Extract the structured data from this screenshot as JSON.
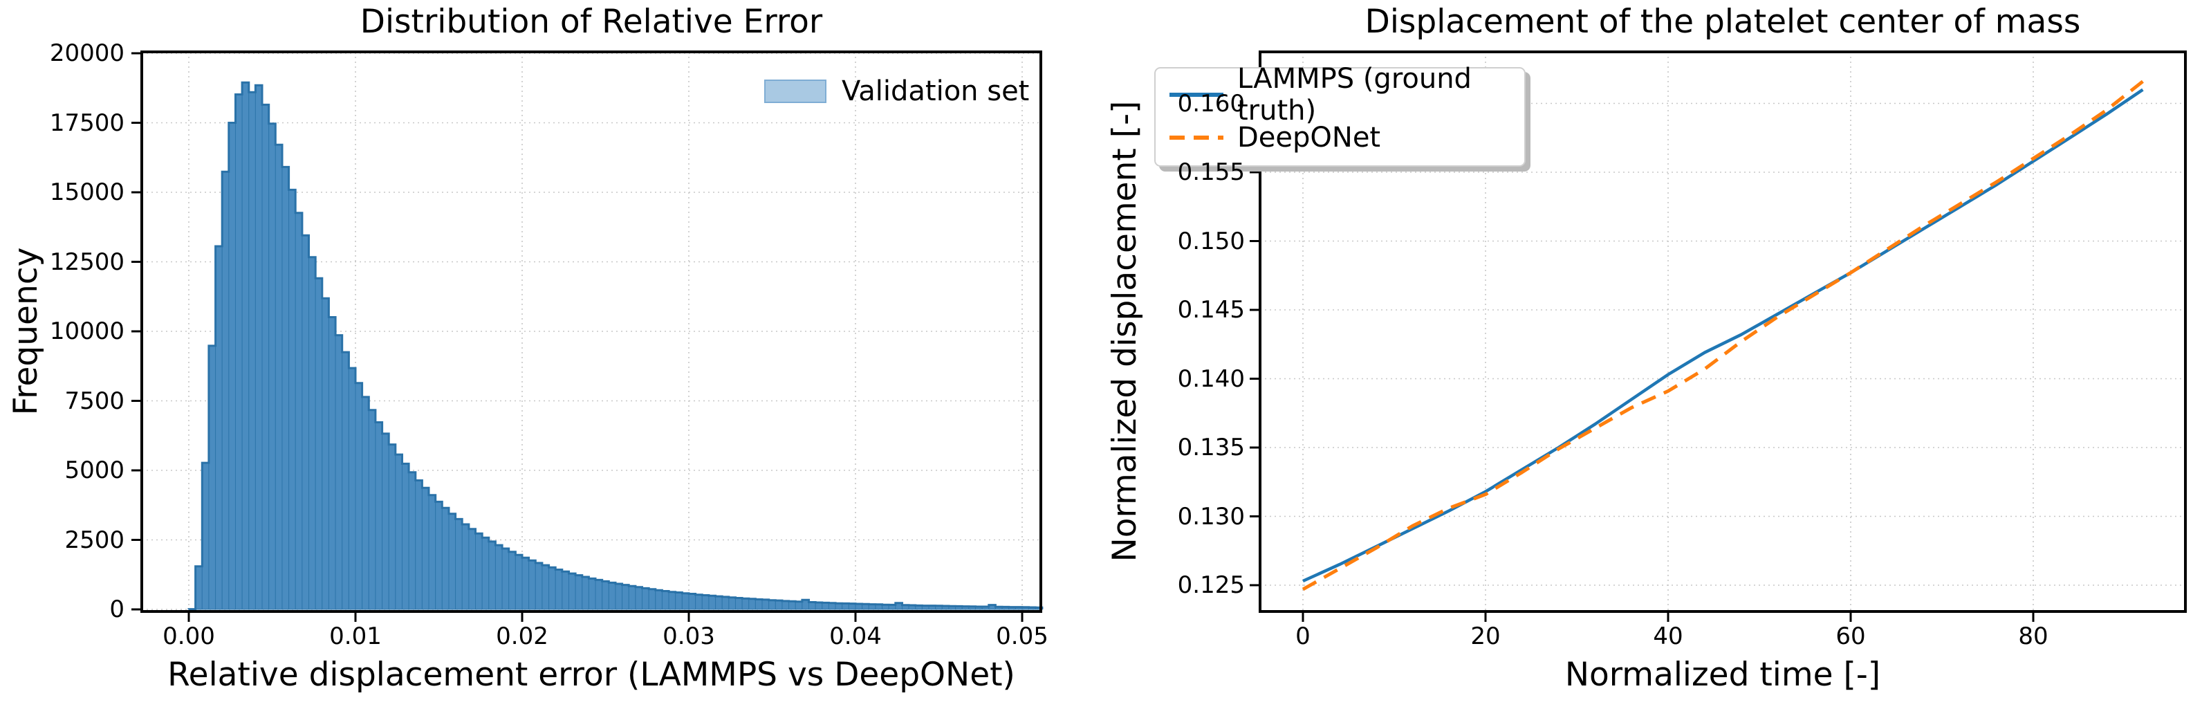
{
  "figure": {
    "background": "#ffffff"
  },
  "chart_data": [
    {
      "id": "relative-error-histogram",
      "type": "histogram",
      "title": "Distribution of Relative Error",
      "xlabel": "Relative displacement error (LAMMPS vs DeepONet)",
      "ylabel": "Frequency",
      "xlim": [
        -0.0028,
        0.0511
      ],
      "ylim": [
        0,
        20000
      ],
      "grid": true,
      "xticks": {
        "values": [
          0,
          0.01,
          0.02,
          0.03,
          0.04,
          0.05
        ],
        "labels": [
          "0.00",
          "0.01",
          "0.02",
          "0.03",
          "0.04",
          "0.05"
        ]
      },
      "yticks": {
        "values": [
          0,
          2500,
          5000,
          7500,
          10000,
          12500,
          15000,
          17500,
          20000
        ],
        "labels": [
          "0",
          "2500",
          "5000",
          "7500",
          "10000",
          "12500",
          "15000",
          "17500",
          "20000"
        ]
      },
      "legend": {
        "position": "upper right",
        "frame": false,
        "items": [
          {
            "label": "Validation set",
            "swatch": "patch",
            "fill": "#a9c9e3",
            "edge": "#7fadd4"
          }
        ]
      },
      "bar_fill": "#4a8cc0",
      "bar_edge": "#2e76ab",
      "outline": "#2a72a8",
      "bin_start": 0,
      "bin_width": 0.0004,
      "frequencies": [
        10,
        1550,
        5270,
        9480,
        13060,
        15740,
        17500,
        18520,
        18950,
        18600,
        18850,
        18150,
        17470,
        16710,
        15910,
        15090,
        14260,
        13450,
        12670,
        11910,
        11190,
        10510,
        9860,
        9250,
        8680,
        8140,
        7640,
        7170,
        6730,
        6320,
        5930,
        5570,
        5240,
        4930,
        4640,
        4370,
        4110,
        3870,
        3650,
        3440,
        3250,
        3060,
        2890,
        2730,
        2580,
        2440,
        2310,
        2190,
        2070,
        1960,
        1860,
        1760,
        1670,
        1590,
        1510,
        1430,
        1360,
        1290,
        1230,
        1170,
        1110,
        1060,
        1010,
        960,
        920,
        880,
        840,
        800,
        760,
        730,
        690,
        660,
        630,
        610,
        580,
        560,
        530,
        510,
        490,
        470,
        450,
        430,
        410,
        390,
        380,
        360,
        350,
        330,
        320,
        300,
        290,
        280,
        340,
        260,
        250,
        240,
        230,
        220,
        215,
        210,
        200,
        195,
        185,
        180,
        170,
        165,
        230,
        155,
        150,
        140,
        135,
        135,
        130,
        125,
        120,
        115,
        110,
        105,
        100,
        100,
        160,
        95,
        90,
        85,
        85,
        80,
        75,
        70
      ]
    },
    {
      "id": "platelet-displacement",
      "type": "line",
      "title": "Displacement of the platelet center of mass",
      "xlabel": "Normalized time [-]",
      "ylabel": "Normalized displacement [-]",
      "xlim": [
        -4.7,
        96.7
      ],
      "ylim": [
        0.1231,
        0.1637
      ],
      "grid": true,
      "xticks": {
        "values": [
          0,
          20,
          40,
          60,
          80
        ],
        "labels": [
          "0",
          "20",
          "40",
          "60",
          "80"
        ]
      },
      "yticks": {
        "values": [
          0.125,
          0.13,
          0.135,
          0.14,
          0.145,
          0.15,
          0.155,
          0.16
        ],
        "labels": [
          "0.125",
          "0.130",
          "0.135",
          "0.140",
          "0.145",
          "0.150",
          "0.155",
          "0.160"
        ]
      },
      "legend": {
        "position": "upper left",
        "frame": true,
        "items": [
          {
            "label": "LAMMPS (ground truth)",
            "style": "solid",
            "color": "#1f77b4"
          },
          {
            "label": "DeepONet",
            "style": "dashed",
            "color": "#ff7f0e"
          }
        ]
      },
      "x": [
        0,
        4,
        8,
        12,
        16,
        20,
        24,
        28,
        32,
        36,
        40,
        44,
        48,
        52,
        56,
        60,
        64,
        68,
        72,
        76,
        80,
        84,
        88,
        92
      ],
      "series": [
        {
          "name": "LAMMPS (ground truth)",
          "color": "#1f77b4",
          "linestyle": "solid",
          "width": 4.5,
          "values": [
            0.1253,
            0.1265,
            0.1278,
            0.1291,
            0.1304,
            0.1318,
            0.1334,
            0.135,
            0.1367,
            0.1385,
            0.1403,
            0.1419,
            0.1432,
            0.1447,
            0.1462,
            0.1477,
            0.1493,
            0.1509,
            0.1525,
            0.1541,
            0.1558,
            0.1575,
            0.1592,
            0.161
          ]
        },
        {
          "name": "DeepONet",
          "color": "#ff7f0e",
          "linestyle": "dashed",
          "dash": [
            22,
            13
          ],
          "width": 5,
          "values": [
            0.1247,
            0.1262,
            0.1277,
            0.1293,
            0.1306,
            0.1316,
            0.1332,
            0.1349,
            0.1364,
            0.1379,
            0.1391,
            0.1407,
            0.1427,
            0.1445,
            0.1461,
            0.1477,
            0.1494,
            0.1511,
            0.1527,
            0.1543,
            0.156,
            0.1577,
            0.1595,
            0.1616
          ]
        }
      ]
    }
  ]
}
